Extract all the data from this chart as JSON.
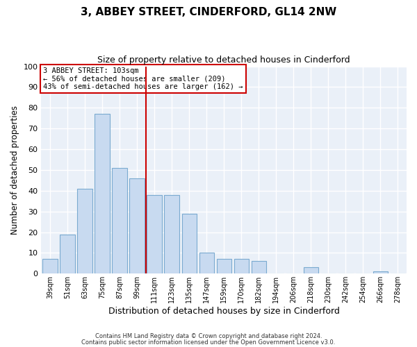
{
  "title": "3, ABBEY STREET, CINDERFORD, GL14 2NW",
  "subtitle": "Size of property relative to detached houses in Cinderford",
  "xlabel": "Distribution of detached houses by size in Cinderford",
  "ylabel": "Number of detached properties",
  "bar_labels": [
    "39sqm",
    "51sqm",
    "63sqm",
    "75sqm",
    "87sqm",
    "99sqm",
    "111sqm",
    "123sqm",
    "135sqm",
    "147sqm",
    "159sqm",
    "170sqm",
    "182sqm",
    "194sqm",
    "206sqm",
    "218sqm",
    "230sqm",
    "242sqm",
    "254sqm",
    "266sqm",
    "278sqm"
  ],
  "bar_heights": [
    7,
    19,
    41,
    77,
    51,
    46,
    38,
    38,
    29,
    10,
    7,
    7,
    6,
    0,
    0,
    3,
    0,
    0,
    0,
    1,
    0
  ],
  "bar_color": "#c8daf0",
  "bar_edge_color": "#7aaad0",
  "ylim": [
    0,
    100
  ],
  "yticks": [
    0,
    10,
    20,
    30,
    40,
    50,
    60,
    70,
    80,
    90,
    100
  ],
  "vline_x": 5.5,
  "vline_color": "#cc0000",
  "annotation_title": "3 ABBEY STREET: 103sqm",
  "annotation_line1": "← 56% of detached houses are smaller (209)",
  "annotation_line2": "43% of semi-detached houses are larger (162) →",
  "annotation_box_color": "#cc0000",
  "bg_color": "#ffffff",
  "plot_bg_color": "#eaf0f8",
  "footer_line1": "Contains HM Land Registry data © Crown copyright and database right 2024.",
  "footer_line2": "Contains public sector information licensed under the Open Government Licence v3.0."
}
